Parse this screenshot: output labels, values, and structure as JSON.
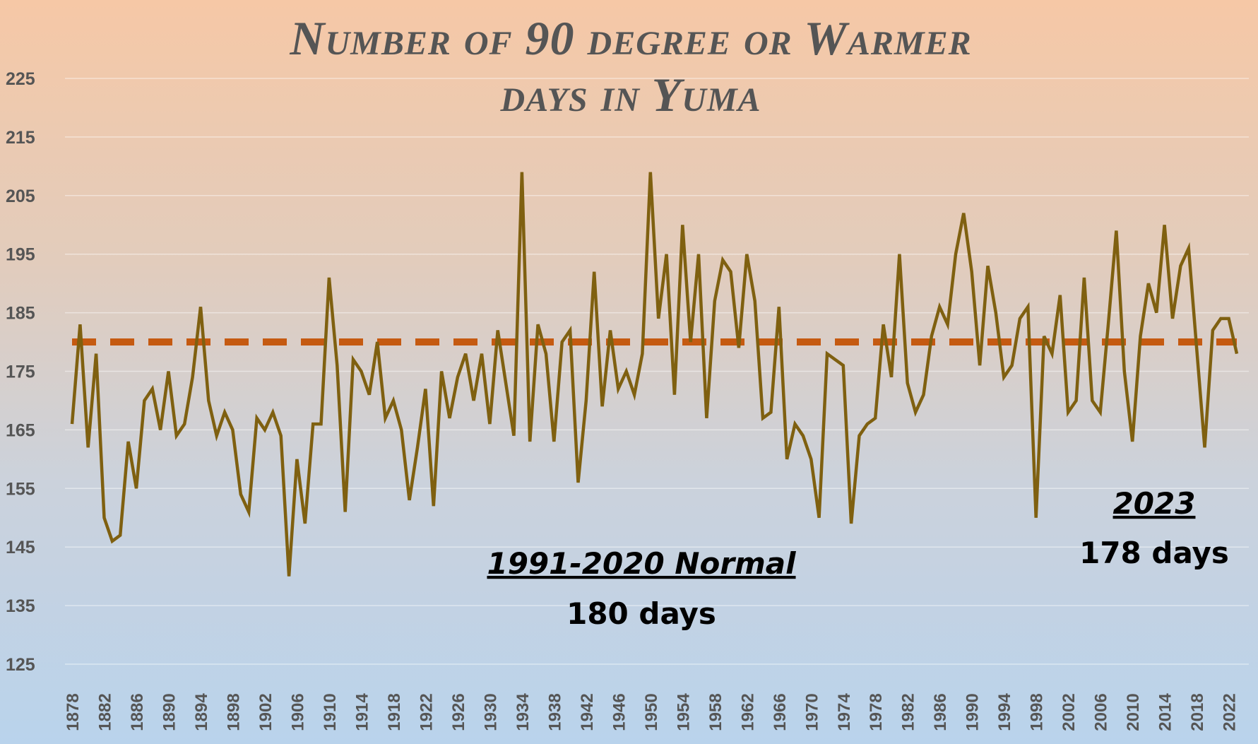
{
  "chart_data": {
    "type": "line",
    "title_line1": "Number of 90 degree or Warmer",
    "title_line2": "days in Yuma",
    "xlabel": "",
    "ylabel": "",
    "ylim": [
      125,
      225
    ],
    "y_ticks": [
      "225",
      "215",
      "205",
      "195",
      "185",
      "175",
      "165",
      "155",
      "145",
      "135",
      "125"
    ],
    "x_tick_labels": [
      "1878",
      "1882",
      "1886",
      "1890",
      "1894",
      "1898",
      "1902",
      "1906",
      "1910",
      "1914",
      "1918",
      "1922",
      "1926",
      "1930",
      "1934",
      "1938",
      "1942",
      "1946",
      "1950",
      "1954",
      "1958",
      "1962",
      "1966",
      "1970",
      "1974",
      "1978",
      "1982",
      "1986",
      "1990",
      "1994",
      "1998",
      "2002",
      "2006",
      "2010",
      "2014",
      "2018",
      "2022"
    ],
    "grid": true,
    "legend": "none",
    "x": [
      1878,
      1879,
      1880,
      1881,
      1882,
      1883,
      1884,
      1885,
      1886,
      1887,
      1888,
      1889,
      1890,
      1891,
      1892,
      1893,
      1894,
      1895,
      1896,
      1897,
      1898,
      1899,
      1900,
      1901,
      1902,
      1903,
      1904,
      1905,
      1906,
      1907,
      1908,
      1909,
      1910,
      1911,
      1912,
      1913,
      1914,
      1915,
      1916,
      1917,
      1918,
      1919,
      1920,
      1921,
      1922,
      1923,
      1924,
      1925,
      1926,
      1927,
      1928,
      1929,
      1930,
      1931,
      1932,
      1933,
      1934,
      1935,
      1936,
      1937,
      1938,
      1939,
      1940,
      1941,
      1942,
      1943,
      1944,
      1945,
      1946,
      1947,
      1948,
      1949,
      1950,
      1951,
      1952,
      1953,
      1954,
      1955,
      1956,
      1957,
      1958,
      1959,
      1960,
      1961,
      1962,
      1963,
      1964,
      1965,
      1966,
      1967,
      1968,
      1969,
      1970,
      1971,
      1972,
      1973,
      1974,
      1975,
      1976,
      1977,
      1978,
      1979,
      1980,
      1981,
      1982,
      1983,
      1984,
      1985,
      1986,
      1987,
      1988,
      1989,
      1990,
      1991,
      1992,
      1993,
      1994,
      1995,
      1996,
      1997,
      1998,
      1999,
      2000,
      2001,
      2002,
      2003,
      2004,
      2005,
      2006,
      2007,
      2008,
      2009,
      2010,
      2011,
      2012,
      2013,
      2014,
      2015,
      2016,
      2017,
      2018,
      2019,
      2020,
      2021,
      2022,
      2023
    ],
    "series": [
      {
        "values": [
          166,
          183,
          162,
          178,
          150,
          146,
          147,
          163,
          155,
          170,
          172,
          165,
          175,
          164,
          166,
          174,
          186,
          170,
          164,
          168,
          165,
          154,
          151,
          167,
          165,
          168,
          164,
          140,
          160,
          149,
          166,
          166,
          191,
          176,
          151,
          177,
          175,
          171,
          180,
          167,
          170,
          165,
          153,
          162,
          172,
          152,
          175,
          167,
          174,
          178,
          170,
          178,
          166,
          182,
          173,
          164,
          209,
          163,
          183,
          178,
          163,
          180,
          182,
          156,
          170,
          192,
          169,
          182,
          172,
          175,
          171,
          178,
          209,
          184,
          195,
          171,
          200,
          180,
          195,
          167,
          187,
          194,
          192,
          179,
          195,
          187,
          167,
          168,
          186,
          160,
          166,
          164,
          160,
          150,
          178,
          177,
          176,
          149,
          164,
          166,
          167,
          183,
          174,
          195,
          173,
          168,
          171,
          181,
          186,
          183,
          195,
          202,
          192,
          176,
          193,
          185,
          174,
          176,
          184,
          186,
          150,
          181,
          178,
          188,
          168,
          170,
          191,
          170,
          168,
          183,
          199,
          175,
          163,
          181,
          190,
          185,
          200,
          184,
          193,
          196,
          179,
          162,
          182,
          184,
          184,
          178
        ],
        "color": "#7f6010"
      }
    ],
    "normal_line": {
      "value": 180,
      "color": "#c55a11"
    },
    "annotations": {
      "normal_title": "1991-2020 Normal",
      "normal_value": "180 days",
      "latest_title": "2023",
      "latest_value": "178 days"
    }
  }
}
